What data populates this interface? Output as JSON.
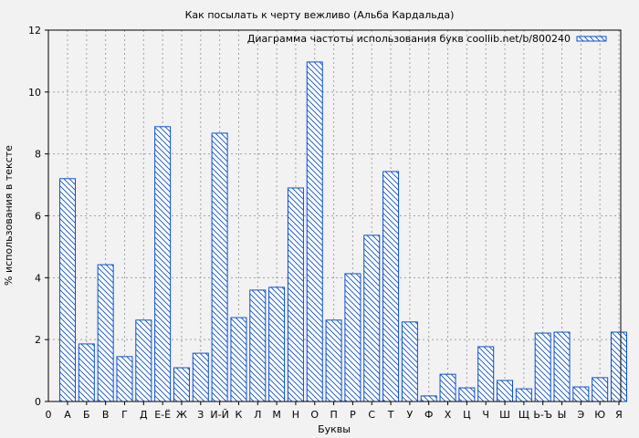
{
  "chart_data": {
    "type": "bar",
    "title": "Как посылать к черту вежливо (Альба Кардальда)",
    "xlabel": "Буквы",
    "ylabel": "% использования в тексте",
    "ylim": [
      0,
      12
    ],
    "yticks": [
      0,
      2,
      4,
      6,
      8,
      10,
      12
    ],
    "x_origin_label": "0",
    "grid": true,
    "legend": {
      "label": "Диаграмма частоты использования букв coollib.net/b/800240",
      "placement": "top-right"
    },
    "categories": [
      "А",
      "Б",
      "В",
      "Г",
      "Д",
      "Е-Ё",
      "Ж",
      "З",
      "И-Й",
      "К",
      "Л",
      "М",
      "Н",
      "О",
      "П",
      "Р",
      "С",
      "Т",
      "У",
      "Ф",
      "Х",
      "Ц",
      "Ч",
      "Ш",
      "Щ",
      "Ь-Ъ",
      "Ы",
      "Э",
      "Ю",
      "Я"
    ],
    "values": [
      7.2,
      1.86,
      4.42,
      1.45,
      2.63,
      8.88,
      1.09,
      1.56,
      8.67,
      2.71,
      3.6,
      3.69,
      6.9,
      10.97,
      2.63,
      4.13,
      5.37,
      7.43,
      2.57,
      0.18,
      0.88,
      0.44,
      1.77,
      0.68,
      0.41,
      2.21,
      2.24,
      0.47,
      0.77,
      2.24
    ],
    "colors": {
      "bar": "#0a4fcf",
      "background": "#f2f2f2",
      "grid": "#a0a0a0"
    }
  }
}
